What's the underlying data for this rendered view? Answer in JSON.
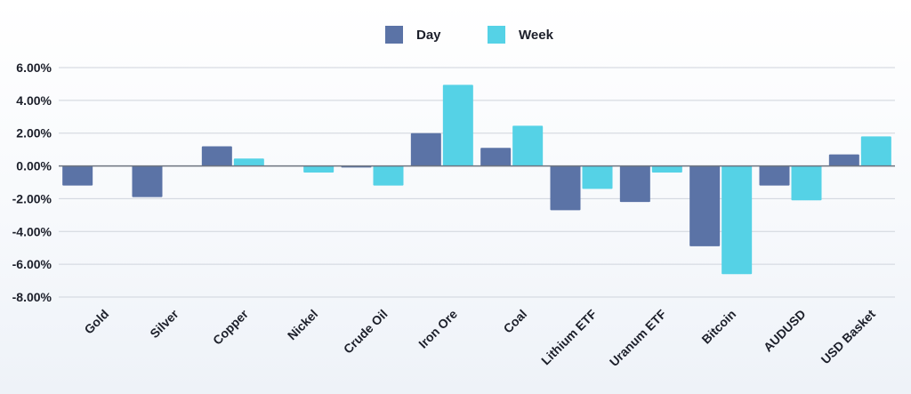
{
  "chart_data": {
    "type": "bar",
    "title": "",
    "xlabel": "",
    "ylabel": "",
    "categories": [
      "Gold",
      "Silver",
      "Copper",
      "Nickel",
      "Crude Oil",
      "Iron Ore",
      "Coal",
      "Lithium ETF",
      "Uranum ETF",
      "Bitcoin",
      "AUDUSD",
      "USD Basket"
    ],
    "series": [
      {
        "name": "Day",
        "color": "#5b73a6",
        "values": [
          -1.2,
          -1.9,
          1.2,
          0.0,
          -0.1,
          2.0,
          1.1,
          -2.7,
          -2.2,
          -4.9,
          -1.2,
          0.7
        ]
      },
      {
        "name": "Week",
        "color": "#55d2e6",
        "values": [
          0.0,
          0.0,
          0.45,
          -0.4,
          -1.2,
          4.95,
          2.45,
          -1.4,
          -0.4,
          -6.6,
          -2.1,
          1.8
        ]
      }
    ],
    "ylim": [
      -8,
      6
    ],
    "yticks": [
      "6.00%",
      "4.00%",
      "2.00%",
      "0.00%",
      "-2.00%",
      "-4.00%",
      "-6.00%",
      "-8.00%"
    ],
    "ytick_values": [
      6,
      4,
      2,
      0,
      -2,
      -4,
      -6,
      -8
    ],
    "grid": true,
    "legend_position": "top-center"
  }
}
